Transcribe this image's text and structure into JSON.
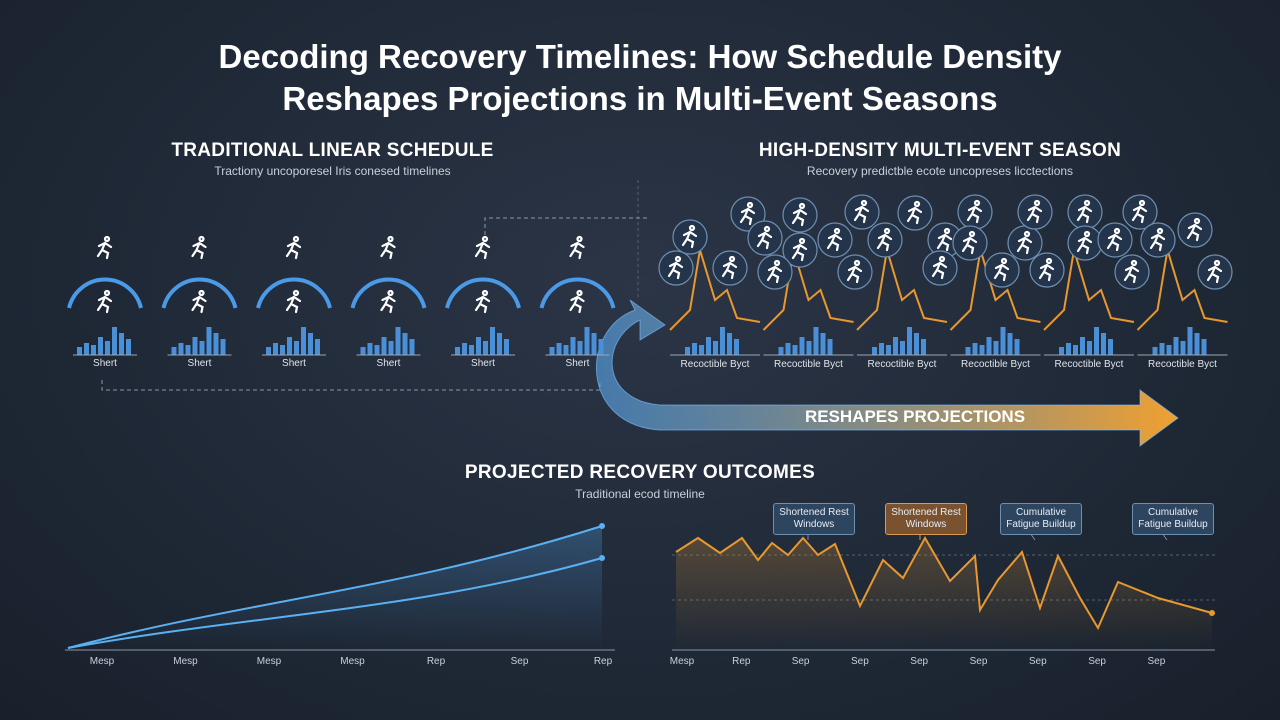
{
  "header": {
    "title": "Decoding Recovery Timelines: How Schedule Density Reshapes Projections in Multi-Event Seasons"
  },
  "left_panel": {
    "heading": "TRADITIONAL LINEAR SCHEDULE",
    "subtitle": "Tractiony uncoporesel Iris conesed timelines",
    "labels": [
      "Shert",
      "Shert",
      "Shert",
      "Shert",
      "Shert",
      "Shert"
    ]
  },
  "right_panel": {
    "heading": "HIGH-DENSITY MULTI-EVENT SEASON",
    "subtitle": "Recovery predictble ecote uncopreses licctections",
    "labels": [
      "Recoctible Byct",
      "Recoctible Byct",
      "Recoctible Byct",
      "Recoctible Byct",
      "Recoctible Byct",
      "Recoctible Byct"
    ]
  },
  "arrow": {
    "label": "RESHAPES PROJECTIONS"
  },
  "outcomes": {
    "heading": "PROJECTED RECOVERY OUTCOMES",
    "subtitle": "Traditional ecod timeline",
    "left_axis": [
      "Mesp",
      "Mesp",
      "Mesp",
      "Mesp",
      "Rep",
      "Sep",
      "Rep"
    ],
    "right_axis": [
      "Mesp",
      "Rep",
      "Sep",
      "Sep",
      "Sep",
      "Sep",
      "Sep",
      "Sep",
      "Sep"
    ],
    "callouts": [
      "Shortened Rest Windows",
      "Shortened Rest Windows",
      "Cumulative Fatigue Buildup",
      "Cumulative Fatigue Buildup"
    ]
  }
}
